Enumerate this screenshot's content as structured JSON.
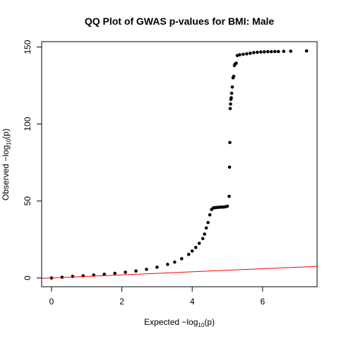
{
  "chart_data": {
    "type": "scatter",
    "title": "QQ Plot of GWAS p-values for BMI: Male",
    "xlabel": {
      "prefix": "Expected  −log",
      "subscript": "10",
      "suffix": "(p)"
    },
    "ylabel": {
      "prefix": "Observed  −log",
      "subscript": "10",
      "suffix": "(p)"
    },
    "xlim": [
      -0.28,
      7.55
    ],
    "ylim": [
      -5.7,
      153.5
    ],
    "x_ticks": [
      0,
      2,
      4,
      6
    ],
    "x_tick_labels": [
      "0",
      "2",
      "4",
      "6"
    ],
    "y_ticks": [
      0,
      50,
      100,
      150
    ],
    "y_tick_labels": [
      "0",
      "50",
      "100",
      "150"
    ],
    "grid": false,
    "legend": "none",
    "point_color": "#000000",
    "reference_line": {
      "slope": 1,
      "intercept": 0,
      "color": "#ff0000"
    },
    "x": [
      0.0,
      0.3,
      0.6,
      0.9,
      1.2,
      1.5,
      1.8,
      2.1,
      2.4,
      2.7,
      3.0,
      3.3,
      3.5,
      3.7,
      3.9,
      4.0,
      4.1,
      4.2,
      4.3,
      4.35,
      4.4,
      4.45,
      4.5,
      4.55,
      4.6,
      4.65,
      4.7,
      4.75,
      4.8,
      4.85,
      4.9,
      4.95,
      5.0,
      5.05,
      5.06,
      5.07,
      5.08,
      5.09,
      5.1,
      5.11,
      5.12,
      5.14,
      5.16,
      5.18,
      5.2,
      5.22,
      5.25,
      5.28,
      5.35,
      5.45,
      5.55,
      5.65,
      5.75,
      5.85,
      5.95,
      6.05,
      6.15,
      6.25,
      6.35,
      6.45,
      6.6,
      6.8,
      7.25
    ],
    "y": [
      0.0,
      0.5,
      1.0,
      1.4,
      1.9,
      2.4,
      3.0,
      3.7,
      4.5,
      5.6,
      7.0,
      8.8,
      10.3,
      12.5,
      15.3,
      17.5,
      19.8,
      22.5,
      25.6,
      28.5,
      32.5,
      36.0,
      41.0,
      44.5,
      45.5,
      45.7,
      45.8,
      45.9,
      46.0,
      46.0,
      46.1,
      46.3,
      46.6,
      53.0,
      72.0,
      88.0,
      110.0,
      113.0,
      116.0,
      117.0,
      120.0,
      124.0,
      130.0,
      131.0,
      138.0,
      139.0,
      139.5,
      144.5,
      145.0,
      145.3,
      145.6,
      146.0,
      146.4,
      146.6,
      146.8,
      146.9,
      147.0,
      147.0,
      147.1,
      147.1,
      147.2,
      147.3,
      147.5
    ]
  }
}
